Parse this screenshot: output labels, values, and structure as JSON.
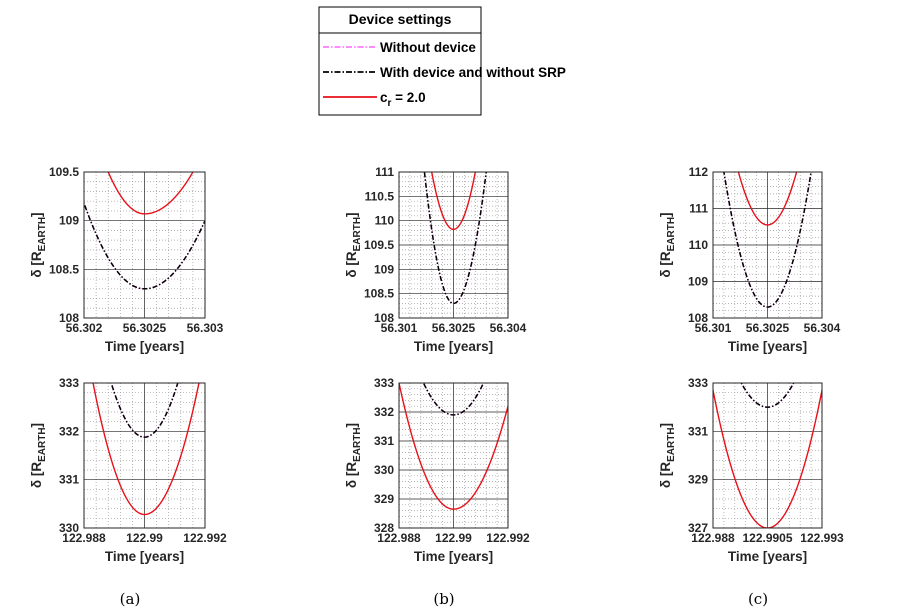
{
  "legend": {
    "title": "Device settings",
    "entries": [
      {
        "label": "Without device",
        "color": "#ff66ff",
        "dash": "dashdot"
      },
      {
        "label": "With device and without SRP",
        "color": "#000000",
        "dash": "dashdot"
      },
      {
        "label": "c",
        "sub": "r",
        "suffix": " = 2.0",
        "color": "#e8101a",
        "dash": "solid"
      }
    ]
  },
  "chart_data": [
    {
      "type": "line",
      "panel": "top-left",
      "xlabel": "Time [years]",
      "ylabel": "δ [R",
      "ylabel_sub": "EARTH",
      "ylabel_suffix": "]",
      "xlim": [
        56.302,
        56.303
      ],
      "ylim": [
        108,
        109.5
      ],
      "xticks": [
        56.302,
        56.3025,
        56.303
      ],
      "xtick_labels": [
        "56.302",
        "56.3025",
        "56.303"
      ],
      "yticks": [
        108,
        108.5,
        109,
        109.5
      ],
      "ytick_labels": [
        "108",
        "108.5",
        "109",
        "109.5"
      ],
      "series": [
        {
          "name": "Without device",
          "vertex_x": 56.3025,
          "vertex_y": 108.3,
          "x": [
            56.302,
            56.303
          ],
          "y": [
            109.18,
            109.0
          ]
        },
        {
          "name": "With device and without SRP",
          "vertex_x": 56.3025,
          "vertex_y": 108.3,
          "x": [
            56.302,
            56.303
          ],
          "y": [
            109.18,
            109.0
          ]
        },
        {
          "name": "c_r = 2.0",
          "vertex_x": 56.3025,
          "vertex_y": 109.07,
          "x": [
            56.3022,
            56.3029
          ],
          "y": [
            109.5,
            109.5
          ]
        }
      ]
    },
    {
      "type": "line",
      "panel": "top-middle",
      "xlabel": "Time [years]",
      "ylabel": "δ [R",
      "ylabel_sub": "EARTH",
      "ylabel_suffix": "]",
      "xlim": [
        56.301,
        56.304
      ],
      "ylim": [
        108,
        111
      ],
      "xticks": [
        56.301,
        56.3025,
        56.304
      ],
      "xtick_labels": [
        "56.301",
        "56.3025",
        "56.304"
      ],
      "yticks": [
        108,
        108.5,
        109,
        109.5,
        110,
        110.5,
        111
      ],
      "ytick_labels": [
        "108",
        "108.5",
        "109",
        "109.5",
        "110",
        "110.5",
        "111"
      ],
      "series": [
        {
          "name": "Without device",
          "vertex_x": 56.3025,
          "vertex_y": 108.3,
          "x": [
            56.3017,
            56.3034
          ],
          "y": [
            111,
            111
          ]
        },
        {
          "name": "With device and without SRP",
          "vertex_x": 56.3025,
          "vertex_y": 108.3,
          "x": [
            56.3017,
            56.3034
          ],
          "y": [
            111,
            111
          ]
        },
        {
          "name": "c_r = 2.0",
          "vertex_x": 56.3025,
          "vertex_y": 109.82,
          "x": [
            56.3019,
            56.3031
          ],
          "y": [
            111,
            111
          ]
        }
      ]
    },
    {
      "type": "line",
      "panel": "top-right",
      "xlabel": "Time [years]",
      "ylabel": "δ [R",
      "ylabel_sub": "EARTH",
      "ylabel_suffix": "]",
      "xlim": [
        56.301,
        56.304
      ],
      "ylim": [
        108,
        112
      ],
      "xticks": [
        56.301,
        56.3025,
        56.304
      ],
      "xtick_labels": [
        "56.301",
        "56.3025",
        "56.304"
      ],
      "yticks": [
        108,
        109,
        110,
        111,
        112
      ],
      "ytick_labels": [
        "108",
        "109",
        "110",
        "111",
        "112"
      ],
      "series": [
        {
          "name": "Without device",
          "vertex_x": 56.3025,
          "vertex_y": 108.3,
          "x": [
            56.3013,
            56.3037
          ],
          "y": [
            112,
            112
          ]
        },
        {
          "name": "With device and without SRP",
          "vertex_x": 56.3025,
          "vertex_y": 108.3,
          "x": [
            56.3013,
            56.3037
          ],
          "y": [
            112,
            112
          ]
        },
        {
          "name": "c_r = 2.0",
          "vertex_x": 56.3025,
          "vertex_y": 110.55,
          "x": [
            56.3017,
            56.3033
          ],
          "y": [
            112,
            112
          ]
        }
      ]
    },
    {
      "type": "line",
      "panel": "bottom-left",
      "xlabel": "Time [years]",
      "ylabel": "δ [R",
      "ylabel_sub": "EARTH",
      "ylabel_suffix": "]",
      "xlim": [
        122.988,
        122.992
      ],
      "ylim": [
        330,
        333
      ],
      "xticks": [
        122.988,
        122.99,
        122.992
      ],
      "xtick_labels": [
        "122.988",
        "122.99",
        "122.992"
      ],
      "yticks": [
        330,
        331,
        332,
        333
      ],
      "ytick_labels": [
        "330",
        "331",
        "332",
        "333"
      ],
      "series": [
        {
          "name": "Without device",
          "vertex_x": 122.99,
          "vertex_y": 331.88,
          "x": [
            122.9889,
            122.9911
          ],
          "y": [
            333,
            333
          ]
        },
        {
          "name": "With device and without SRP",
          "vertex_x": 122.99,
          "vertex_y": 331.88,
          "x": [
            122.9889,
            122.9911
          ],
          "y": [
            333,
            333
          ]
        },
        {
          "name": "c_r = 2.0",
          "vertex_x": 122.99,
          "vertex_y": 330.28,
          "x": [
            122.9883,
            122.9918
          ],
          "y": [
            333,
            333
          ]
        }
      ]
    },
    {
      "type": "line",
      "panel": "bottom-middle",
      "xlabel": "Time [years]",
      "ylabel": "δ [R",
      "ylabel_sub": "EARTH",
      "ylabel_suffix": "]",
      "xlim": [
        122.988,
        122.992
      ],
      "ylim": [
        328,
        333
      ],
      "xticks": [
        122.988,
        122.99,
        122.992
      ],
      "xtick_labels": [
        "122.988",
        "122.99",
        "122.992"
      ],
      "yticks": [
        328,
        329,
        330,
        331,
        332,
        333
      ],
      "ytick_labels": [
        "328",
        "329",
        "330",
        "331",
        "332",
        "333"
      ],
      "series": [
        {
          "name": "Without device",
          "vertex_x": 122.99,
          "vertex_y": 331.9,
          "x": [
            122.9889,
            122.9911
          ],
          "y": [
            333,
            333
          ]
        },
        {
          "name": "With device and without SRP",
          "vertex_x": 122.99,
          "vertex_y": 331.9,
          "x": [
            122.9889,
            122.9911
          ],
          "y": [
            333,
            333
          ]
        },
        {
          "name": "c_r = 2.0",
          "vertex_x": 122.99,
          "vertex_y": 328.65,
          "x": [
            122.988,
            122.992
          ],
          "y": [
            333,
            332.2
          ]
        }
      ]
    },
    {
      "type": "line",
      "panel": "bottom-right",
      "xlabel": "Time [years]",
      "ylabel": "δ [R",
      "ylabel_sub": "EARTH",
      "ylabel_suffix": "]",
      "xlim": [
        122.988,
        122.993
      ],
      "ylim": [
        327,
        333
      ],
      "xticks": [
        122.988,
        122.9905,
        122.993
      ],
      "xtick_labels": [
        "122.988",
        "122.9905",
        "122.993"
      ],
      "yticks": [
        327,
        329,
        331,
        333
      ],
      "ytick_labels": [
        "327",
        "329",
        "331",
        "333"
      ],
      "series": [
        {
          "name": "Without device",
          "vertex_x": 122.9905,
          "vertex_y": 332.0,
          "x": [
            122.9893,
            122.9917
          ],
          "y": [
            333,
            333
          ]
        },
        {
          "name": "With device and without SRP",
          "vertex_x": 122.9905,
          "vertex_y": 332.0,
          "x": [
            122.9893,
            122.9917
          ],
          "y": [
            333,
            333
          ]
        },
        {
          "name": "c_r = 2.0",
          "vertex_x": 122.9905,
          "vertex_y": 327.0,
          "x": [
            122.988,
            122.993
          ],
          "y": [
            332.7,
            332.7
          ]
        }
      ]
    }
  ],
  "captions": [
    "(a)",
    "(b)",
    "(c)"
  ],
  "grid": "major and minor",
  "colors": {
    "axis": "#262626",
    "major_grid": "#262626",
    "minor_grid": "#9a9a9a"
  }
}
